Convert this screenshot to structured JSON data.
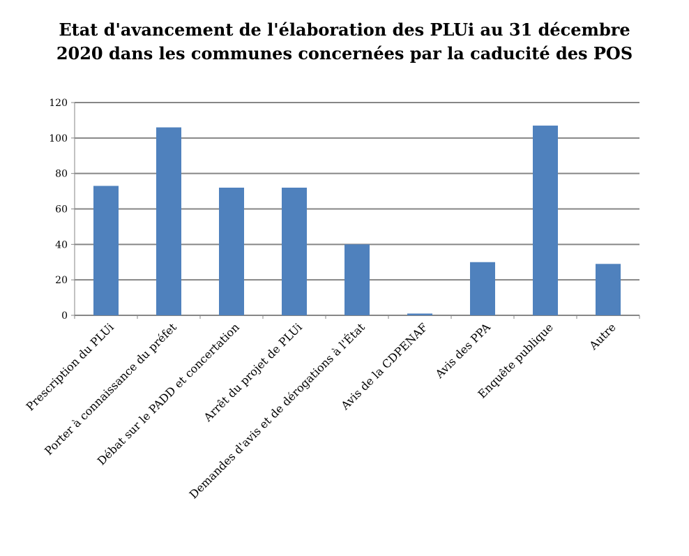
{
  "chart_data": {
    "type": "bar",
    "title_line1": "Etat d'avancement de l'élaboration des PLUi au 31 décembre",
    "title_line2": "2020 dans les communes concernées par la caducité des POS",
    "xlabel": "",
    "ylabel": "",
    "ylim": [
      0,
      120
    ],
    "yticks": [
      0,
      20,
      40,
      60,
      80,
      100,
      120
    ],
    "grid": true,
    "legend": "none",
    "bar_color": "#4F81BD",
    "grid_color": "#868686",
    "categories": [
      "Prescription du PLUi",
      "Porter à connaissance du préfet",
      "Débat sur le PADD et concertation",
      "Arrêt du projet de PLUi",
      "Demandes d'avis et de dérogations à l'État",
      "Avis de la CDPENAF",
      "Avis des PPA",
      "Enquête publique",
      "Autre"
    ],
    "values": [
      73,
      106,
      72,
      72,
      40,
      1,
      30,
      107,
      29
    ]
  }
}
